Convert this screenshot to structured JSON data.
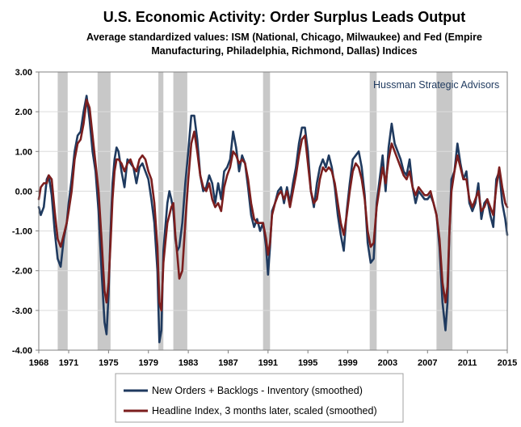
{
  "chart_data": {
    "type": "line",
    "title": "U.S. Economic Activity: Order Surplus Leads Output",
    "subtitle_lines": [
      "Average standardized values: ISM (National, Chicago, Milwaukee) and Fed (Empire",
      "Manufacturing, Philadelphia, Richmond, Dallas) Indices"
    ],
    "watermark": "Hussman Strategic Advisors",
    "xlabel": "",
    "ylabel": "",
    "xlim": [
      1968,
      2015
    ],
    "ylim": [
      -4,
      3
    ],
    "x_ticks": [
      1968,
      1971,
      1975,
      1979,
      1983,
      1987,
      1991,
      1995,
      1999,
      2003,
      2007,
      2011,
      2015
    ],
    "y_ticks": [
      3,
      2,
      1,
      0,
      -1,
      -2,
      -3,
      -4
    ],
    "y_tick_labels": [
      "3.00",
      "2.00",
      "1.00",
      "0.00",
      "-1.00",
      "-2.00",
      "-3.00",
      "-4.00"
    ],
    "recessions": [
      [
        1969.9,
        1970.9
      ],
      [
        1973.9,
        1975.2
      ],
      [
        1980.0,
        1980.5
      ],
      [
        1981.5,
        1982.9
      ],
      [
        1990.5,
        1991.2
      ],
      [
        2001.2,
        2001.9
      ],
      [
        2007.9,
        2009.5
      ]
    ],
    "colors": {
      "series1": "#1f3a5f",
      "series2": "#7b1e1e",
      "recession": "#c8c8c8",
      "grid": "#dcdcdc"
    },
    "series": [
      {
        "name": "New Orders + Backlogs - Inventory (smoothed)",
        "x": [
          1968.0,
          1968.2,
          1968.5,
          1968.8,
          1969.0,
          1969.3,
          1969.6,
          1969.9,
          1970.2,
          1970.5,
          1970.8,
          1971.0,
          1971.3,
          1971.6,
          1971.9,
          1972.2,
          1972.5,
          1972.8,
          1973.1,
          1973.4,
          1973.7,
          1974.0,
          1974.3,
          1974.6,
          1974.8,
          1975.0,
          1975.2,
          1975.4,
          1975.6,
          1975.8,
          1976.0,
          1976.3,
          1976.6,
          1976.9,
          1977.2,
          1977.5,
          1977.8,
          1978.1,
          1978.4,
          1978.7,
          1979.0,
          1979.3,
          1979.6,
          1979.9,
          1980.1,
          1980.3,
          1980.5,
          1980.7,
          1980.9,
          1981.1,
          1981.3,
          1981.5,
          1981.7,
          1981.9,
          1982.1,
          1982.4,
          1982.7,
          1983.0,
          1983.3,
          1983.6,
          1983.9,
          1984.2,
          1984.5,
          1984.8,
          1985.1,
          1985.4,
          1985.7,
          1986.0,
          1986.3,
          1986.6,
          1986.9,
          1987.2,
          1987.5,
          1987.8,
          1988.1,
          1988.4,
          1988.7,
          1989.0,
          1989.3,
          1989.6,
          1989.9,
          1990.2,
          1990.5,
          1990.8,
          1991.0,
          1991.2,
          1991.4,
          1991.7,
          1992.0,
          1992.3,
          1992.6,
          1992.9,
          1993.2,
          1993.5,
          1993.8,
          1994.1,
          1994.4,
          1994.7,
          1995.0,
          1995.3,
          1995.6,
          1995.9,
          1996.2,
          1996.5,
          1996.8,
          1997.1,
          1997.4,
          1997.7,
          1998.0,
          1998.3,
          1998.6,
          1998.9,
          1999.2,
          1999.5,
          1999.8,
          2000.1,
          2000.4,
          2000.7,
          2001.0,
          2001.3,
          2001.6,
          2001.9,
          2002.2,
          2002.5,
          2002.8,
          2003.1,
          2003.4,
          2003.7,
          2004.0,
          2004.3,
          2004.6,
          2004.9,
          2005.2,
          2005.5,
          2005.8,
          2006.1,
          2006.4,
          2006.7,
          2007.0,
          2007.3,
          2007.6,
          2007.9,
          2008.2,
          2008.5,
          2008.8,
          2009.0,
          2009.2,
          2009.4,
          2009.7,
          2010.0,
          2010.3,
          2010.6,
          2010.9,
          2011.2,
          2011.5,
          2011.8,
          2012.1,
          2012.4,
          2012.7,
          2013.0,
          2013.3,
          2013.6,
          2013.9,
          2014.2,
          2014.5,
          2014.8,
          2015.0
        ],
        "values": [
          -0.4,
          -0.6,
          -0.4,
          0.3,
          0.4,
          -0.1,
          -1.0,
          -1.7,
          -1.9,
          -1.2,
          -0.8,
          -0.3,
          0.3,
          1.0,
          1.4,
          1.5,
          2.0,
          2.4,
          1.8,
          1.0,
          0.5,
          -0.5,
          -2.0,
          -3.3,
          -3.6,
          -2.6,
          -1.0,
          0.2,
          0.8,
          1.1,
          1.0,
          0.5,
          0.1,
          0.8,
          0.7,
          0.6,
          0.2,
          0.6,
          0.7,
          0.5,
          0.3,
          -0.2,
          -0.8,
          -2.0,
          -3.8,
          -3.5,
          -1.5,
          -0.9,
          -0.3,
          0.0,
          -0.2,
          -0.5,
          -1.2,
          -1.5,
          -1.4,
          -0.8,
          0.2,
          1.0,
          1.9,
          1.9,
          1.3,
          0.4,
          0.0,
          0.1,
          0.4,
          0.2,
          -0.3,
          0.2,
          -0.2,
          0.5,
          0.6,
          0.8,
          1.5,
          1.1,
          0.5,
          0.9,
          0.7,
          0.1,
          -0.6,
          -0.9,
          -0.7,
          -1.0,
          -0.8,
          -1.4,
          -2.1,
          -1.4,
          -0.5,
          -0.3,
          0.0,
          0.1,
          -0.3,
          0.1,
          -0.3,
          0.2,
          0.6,
          1.2,
          1.6,
          1.6,
          1.0,
          0.0,
          -0.4,
          0.2,
          0.6,
          0.8,
          0.6,
          0.9,
          0.6,
          0.1,
          -0.6,
          -1.1,
          -1.5,
          -0.5,
          0.2,
          0.8,
          0.9,
          1.0,
          0.6,
          -0.1,
          -1.3,
          -1.8,
          -1.7,
          -0.3,
          0.3,
          0.9,
          0.0,
          1.1,
          1.7,
          1.2,
          1.0,
          0.8,
          0.5,
          0.4,
          0.8,
          0.1,
          -0.3,
          0.0,
          -0.1,
          -0.2,
          -0.2,
          -0.1,
          -0.3,
          -0.6,
          -1.4,
          -2.8,
          -3.5,
          -2.8,
          -1.0,
          0.3,
          0.5,
          1.2,
          0.7,
          0.3,
          0.5,
          -0.3,
          -0.5,
          -0.3,
          0.2,
          -0.7,
          -0.3,
          -0.2,
          -0.6,
          -0.9,
          0.3,
          0.5,
          -0.3,
          -0.7,
          -1.1
        ]
      },
      {
        "name": "Headline Index, 3 months later, scaled (smoothed)",
        "x": [
          1968.0,
          1968.2,
          1968.5,
          1968.8,
          1969.0,
          1969.3,
          1969.6,
          1969.9,
          1970.2,
          1970.5,
          1970.8,
          1971.0,
          1971.3,
          1971.6,
          1971.9,
          1972.2,
          1972.5,
          1972.8,
          1973.1,
          1973.4,
          1973.7,
          1974.0,
          1974.3,
          1974.6,
          1974.8,
          1975.0,
          1975.2,
          1975.4,
          1975.6,
          1975.8,
          1976.0,
          1976.3,
          1976.6,
          1976.9,
          1977.2,
          1977.5,
          1977.8,
          1978.1,
          1978.4,
          1978.7,
          1979.0,
          1979.3,
          1979.6,
          1979.9,
          1980.1,
          1980.3,
          1980.5,
          1980.7,
          1980.9,
          1981.1,
          1981.3,
          1981.5,
          1981.7,
          1981.9,
          1982.1,
          1982.4,
          1982.7,
          1983.0,
          1983.3,
          1983.6,
          1983.9,
          1984.2,
          1984.5,
          1984.8,
          1985.1,
          1985.4,
          1985.7,
          1986.0,
          1986.3,
          1986.6,
          1986.9,
          1987.2,
          1987.5,
          1987.8,
          1988.1,
          1988.4,
          1988.7,
          1989.0,
          1989.3,
          1989.6,
          1989.9,
          1990.2,
          1990.5,
          1990.8,
          1991.0,
          1991.2,
          1991.4,
          1991.7,
          1992.0,
          1992.3,
          1992.6,
          1992.9,
          1993.2,
          1993.5,
          1993.8,
          1994.1,
          1994.4,
          1994.7,
          1995.0,
          1995.3,
          1995.6,
          1995.9,
          1996.2,
          1996.5,
          1996.8,
          1997.1,
          1997.4,
          1997.7,
          1998.0,
          1998.3,
          1998.6,
          1998.9,
          1999.2,
          1999.5,
          1999.8,
          2000.1,
          2000.4,
          2000.7,
          2001.0,
          2001.3,
          2001.6,
          2001.9,
          2002.2,
          2002.5,
          2002.8,
          2003.1,
          2003.4,
          2003.7,
          2004.0,
          2004.3,
          2004.6,
          2004.9,
          2005.2,
          2005.5,
          2005.8,
          2006.1,
          2006.4,
          2006.7,
          2007.0,
          2007.3,
          2007.6,
          2007.9,
          2008.2,
          2008.5,
          2008.8,
          2009.0,
          2009.2,
          2009.4,
          2009.7,
          2010.0,
          2010.3,
          2010.6,
          2010.9,
          2011.2,
          2011.5,
          2011.8,
          2012.1,
          2012.4,
          2012.7,
          2013.0,
          2013.3,
          2013.6,
          2013.9,
          2014.2,
          2014.5,
          2014.8,
          2015.0
        ],
        "values": [
          -0.2,
          0.1,
          0.2,
          0.2,
          0.4,
          0.3,
          -0.5,
          -1.2,
          -1.4,
          -1.1,
          -0.8,
          -0.5,
          0.0,
          0.8,
          1.2,
          1.3,
          1.7,
          2.3,
          2.1,
          1.4,
          0.7,
          0.0,
          -1.2,
          -2.5,
          -2.8,
          -2.3,
          -1.3,
          -0.2,
          0.5,
          0.8,
          0.8,
          0.7,
          0.5,
          0.7,
          0.8,
          0.6,
          0.5,
          0.8,
          0.9,
          0.8,
          0.5,
          0.3,
          -0.3,
          -1.4,
          -2.8,
          -3.0,
          -1.8,
          -1.3,
          -0.8,
          -0.6,
          -0.4,
          -0.3,
          -1.1,
          -1.6,
          -2.2,
          -2.0,
          -0.8,
          0.3,
          1.2,
          1.5,
          1.0,
          0.4,
          0.1,
          0.0,
          0.2,
          -0.2,
          -0.4,
          -0.3,
          -0.5,
          0.1,
          0.4,
          0.6,
          1.0,
          0.9,
          0.7,
          0.8,
          0.7,
          0.3,
          -0.3,
          -0.7,
          -0.8,
          -0.8,
          -0.8,
          -1.2,
          -1.6,
          -1.3,
          -0.6,
          -0.3,
          -0.1,
          0.0,
          -0.2,
          0.0,
          -0.4,
          0.0,
          0.4,
          0.9,
          1.3,
          1.4,
          0.7,
          0.0,
          -0.3,
          -0.2,
          0.3,
          0.6,
          0.5,
          0.6,
          0.5,
          0.2,
          -0.3,
          -0.8,
          -1.1,
          -0.6,
          0.0,
          0.5,
          0.7,
          0.6,
          0.3,
          -0.2,
          -1.0,
          -1.4,
          -1.3,
          -0.4,
          0.1,
          0.6,
          0.2,
          0.8,
          1.2,
          1.0,
          0.8,
          0.6,
          0.4,
          0.3,
          0.5,
          0.1,
          -0.1,
          0.1,
          0.0,
          -0.1,
          -0.1,
          0.0,
          -0.3,
          -0.6,
          -1.2,
          -2.3,
          -2.8,
          -2.4,
          -1.0,
          0.0,
          0.5,
          0.9,
          0.6,
          0.3,
          0.3,
          -0.2,
          -0.4,
          -0.2,
          0.0,
          -0.5,
          -0.4,
          -0.2,
          -0.4,
          -0.6,
          0.1,
          0.6,
          0.1,
          -0.3,
          -0.4
        ]
      }
    ],
    "legend_position": "bottom"
  }
}
